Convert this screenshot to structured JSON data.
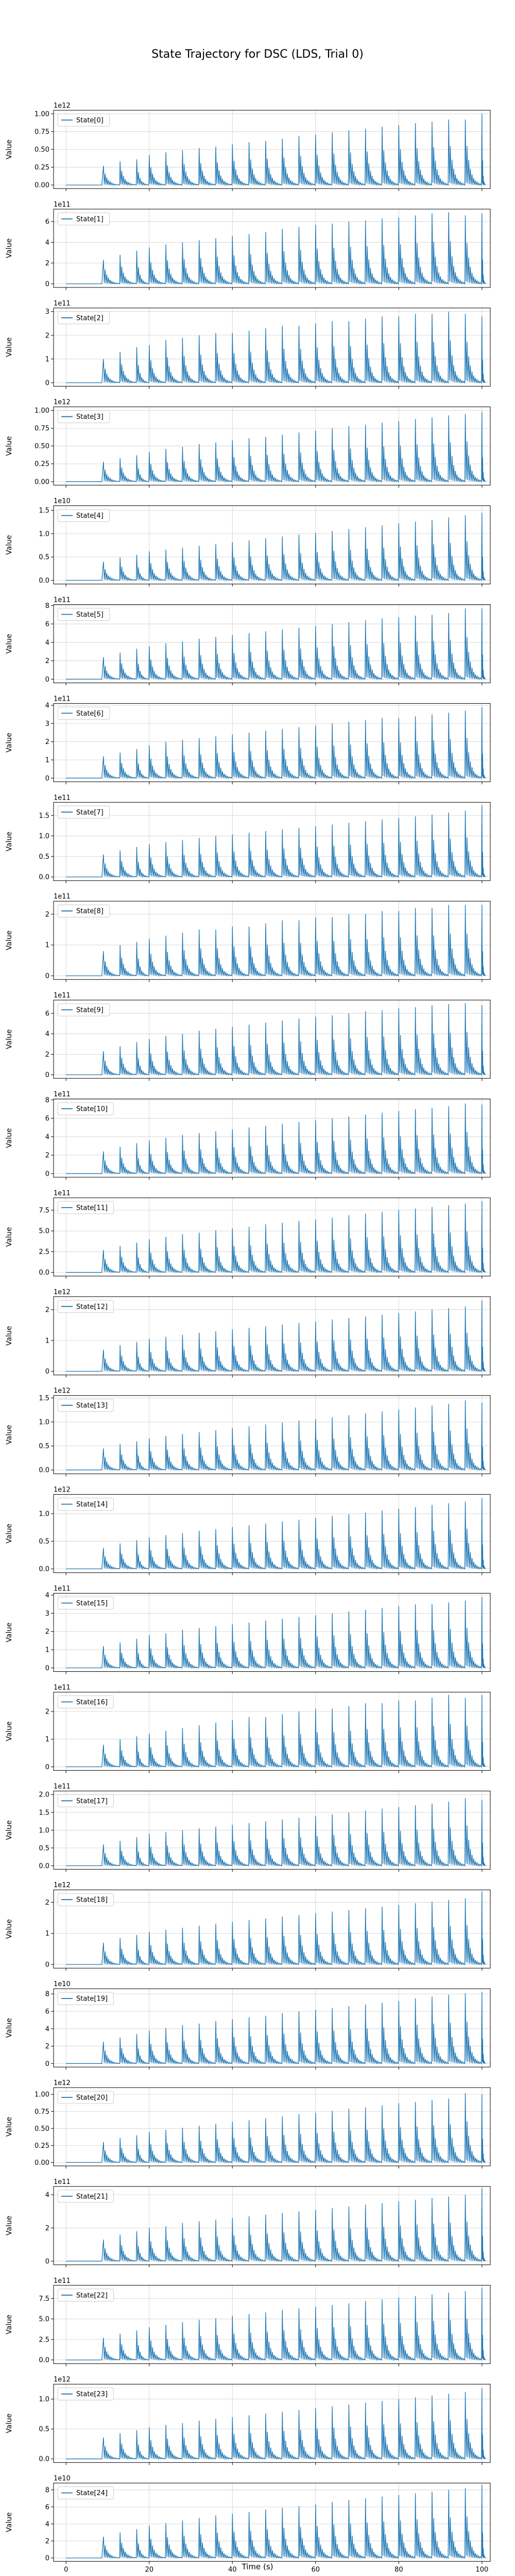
{
  "title": "State Trajectory for DSC (LDS, Trial 0)",
  "chart_data": {
    "type": "line",
    "title": "State Trajectory for DSC (LDS, Trial 0)",
    "xlabel": "Time (s)",
    "ylabel": "Value",
    "xlim": [
      -3,
      102
    ],
    "xticks": [
      0,
      20,
      40,
      60,
      80,
      100
    ],
    "grid": true,
    "legend_placement": "upper left",
    "line_color": "#1f77b4",
    "spike_times": [
      9,
      13,
      17,
      20,
      24,
      28,
      32,
      36,
      40,
      44,
      48,
      52,
      56,
      60,
      64,
      68,
      72,
      76,
      80,
      84,
      88,
      92,
      96,
      100
    ],
    "series": [
      {
        "name": "State[0]",
        "exponent_label": "1e12",
        "yticks": [
          "0.00",
          "0.25",
          "0.50",
          "0.75",
          "1.00"
        ],
        "ylim": [
          -0.05,
          1.05
        ],
        "peaks": [
          0.27,
          0.33,
          0.36,
          0.42,
          0.46,
          0.49,
          0.52,
          0.54,
          0.57,
          0.6,
          0.62,
          0.65,
          0.69,
          0.71,
          0.74,
          0.77,
          0.79,
          0.82,
          0.84,
          0.87,
          0.89,
          0.92,
          0.92,
          1.0
        ]
      },
      {
        "name": "State[1]",
        "exponent_label": "1e11",
        "yticks": [
          "0",
          "2",
          "4",
          "6"
        ],
        "ylim": [
          -0.35,
          7.2
        ],
        "peaks": [
          2.3,
          2.8,
          3.2,
          3.5,
          3.8,
          4.0,
          4.2,
          4.4,
          4.6,
          4.8,
          5.0,
          5.3,
          5.5,
          5.7,
          5.8,
          6.0,
          6.1,
          6.3,
          6.4,
          6.6,
          6.8,
          6.9,
          6.6,
          6.8
        ]
      },
      {
        "name": "State[2]",
        "exponent_label": "1e11",
        "yticks": [
          "0",
          "1",
          "2",
          "3"
        ],
        "ylim": [
          -0.15,
          3.15
        ],
        "peaks": [
          1.0,
          1.3,
          1.5,
          1.6,
          1.8,
          1.9,
          2.0,
          2.1,
          2.1,
          2.2,
          2.3,
          2.4,
          2.4,
          2.5,
          2.6,
          2.6,
          2.7,
          2.8,
          2.8,
          2.9,
          2.9,
          3.0,
          2.9,
          2.8
        ]
      },
      {
        "name": "State[3]",
        "exponent_label": "1e12",
        "yticks": [
          "0.00",
          "0.25",
          "0.50",
          "0.75",
          "1.00"
        ],
        "ylim": [
          -0.05,
          1.05
        ],
        "peaks": [
          0.28,
          0.33,
          0.37,
          0.42,
          0.46,
          0.49,
          0.53,
          0.55,
          0.58,
          0.61,
          0.63,
          0.66,
          0.69,
          0.72,
          0.75,
          0.78,
          0.8,
          0.83,
          0.85,
          0.88,
          0.9,
          0.93,
          0.95,
          0.98
        ]
      },
      {
        "name": "State[4]",
        "exponent_label": "1e10",
        "yticks": [
          "0.0",
          "0.5",
          "1.0",
          "1.5"
        ],
        "ylim": [
          -0.08,
          1.6
        ],
        "peaks": [
          0.4,
          0.49,
          0.55,
          0.62,
          0.66,
          0.7,
          0.74,
          0.78,
          0.82,
          0.86,
          0.9,
          0.94,
          0.98,
          1.02,
          1.06,
          1.1,
          1.14,
          1.18,
          1.22,
          1.26,
          1.3,
          1.35,
          1.4,
          1.45
        ]
      },
      {
        "name": "State[5]",
        "exponent_label": "1e11",
        "yticks": [
          "0",
          "2",
          "4",
          "6",
          "8"
        ],
        "ylim": [
          -0.4,
          8.1
        ],
        "peaks": [
          2.4,
          2.9,
          3.3,
          3.6,
          3.9,
          4.1,
          4.4,
          4.6,
          4.8,
          5.0,
          5.2,
          5.4,
          5.6,
          5.8,
          6.0,
          6.2,
          6.4,
          6.6,
          6.7,
          6.9,
          7.0,
          7.2,
          7.7,
          7.7
        ]
      },
      {
        "name": "State[6]",
        "exponent_label": "1e11",
        "yticks": [
          "0",
          "1",
          "2",
          "3",
          "4"
        ],
        "ylim": [
          -0.2,
          4.1
        ],
        "peaks": [
          1.2,
          1.4,
          1.6,
          1.8,
          2.0,
          2.1,
          2.2,
          2.3,
          2.4,
          2.5,
          2.6,
          2.7,
          2.8,
          2.9,
          3.0,
          3.1,
          3.2,
          3.3,
          3.3,
          3.4,
          3.5,
          3.6,
          3.7,
          3.9
        ]
      },
      {
        "name": "State[7]",
        "exponent_label": "1e11",
        "yticks": [
          "0.0",
          "0.5",
          "1.0",
          "1.5"
        ],
        "ylim": [
          -0.09,
          1.82
        ],
        "peaks": [
          0.55,
          0.65,
          0.73,
          0.8,
          0.85,
          0.9,
          0.95,
          1.0,
          1.04,
          1.08,
          1.12,
          1.16,
          1.2,
          1.24,
          1.28,
          1.32,
          1.36,
          1.4,
          1.44,
          1.48,
          1.52,
          1.57,
          1.62,
          1.75
        ]
      },
      {
        "name": "State[8]",
        "exponent_label": "1e11",
        "yticks": [
          "0",
          "1",
          "2"
        ],
        "ylim": [
          -0.12,
          2.42
        ],
        "peaks": [
          0.8,
          1.0,
          1.1,
          1.2,
          1.3,
          1.4,
          1.5,
          1.5,
          1.6,
          1.6,
          1.7,
          1.8,
          1.8,
          1.9,
          1.9,
          2.0,
          2.0,
          2.1,
          2.1,
          2.2,
          2.2,
          2.3,
          2.3,
          2.3
        ]
      },
      {
        "name": "State[9]",
        "exponent_label": "1e11",
        "yticks": [
          "0",
          "2",
          "4",
          "6"
        ],
        "ylim": [
          -0.35,
          7.3
        ],
        "peaks": [
          2.3,
          2.8,
          3.2,
          3.5,
          3.8,
          4.0,
          4.3,
          4.5,
          4.7,
          4.9,
          5.1,
          5.3,
          5.5,
          5.7,
          5.8,
          6.0,
          6.2,
          6.3,
          6.5,
          6.6,
          6.8,
          6.9,
          7.0,
          6.8
        ]
      },
      {
        "name": "State[10]",
        "exponent_label": "1e11",
        "yticks": [
          "0",
          "2",
          "4",
          "6",
          "8"
        ],
        "ylim": [
          -0.4,
          8.1
        ],
        "peaks": [
          2.4,
          2.9,
          3.3,
          3.6,
          3.9,
          4.2,
          4.4,
          4.6,
          4.8,
          5.0,
          5.2,
          5.4,
          5.6,
          5.8,
          6.0,
          6.2,
          6.4,
          6.6,
          6.8,
          7.0,
          7.1,
          7.3,
          7.6,
          7.5
        ]
      },
      {
        "name": "State[11]",
        "exponent_label": "1e11",
        "yticks": [
          "0.0",
          "2.5",
          "5.0",
          "7.5"
        ],
        "ylim": [
          -0.45,
          9.0
        ],
        "peaks": [
          2.7,
          3.2,
          3.6,
          4.0,
          4.3,
          4.6,
          4.8,
          5.1,
          5.3,
          5.5,
          5.8,
          6.0,
          6.2,
          6.4,
          6.6,
          6.9,
          7.1,
          7.3,
          7.5,
          7.7,
          7.9,
          8.1,
          8.3,
          8.6
        ]
      },
      {
        "name": "State[12]",
        "exponent_label": "1e12",
        "yticks": [
          "0",
          "1",
          "2"
        ],
        "ylim": [
          -0.12,
          2.42
        ],
        "peaks": [
          0.7,
          0.85,
          0.95,
          1.05,
          1.12,
          1.18,
          1.25,
          1.3,
          1.36,
          1.41,
          1.46,
          1.52,
          1.57,
          1.62,
          1.68,
          1.73,
          1.78,
          1.84,
          1.89,
          1.94,
          2.0,
          2.05,
          2.1,
          2.3
        ]
      },
      {
        "name": "State[13]",
        "exponent_label": "1e12",
        "yticks": [
          "0.0",
          "0.5",
          "1.0",
          "1.5"
        ],
        "ylim": [
          -0.08,
          1.55
        ],
        "peaks": [
          0.45,
          0.54,
          0.6,
          0.66,
          0.71,
          0.75,
          0.79,
          0.83,
          0.87,
          0.91,
          0.95,
          0.99,
          1.03,
          1.06,
          1.1,
          1.14,
          1.18,
          1.22,
          1.26,
          1.3,
          1.34,
          1.38,
          1.45,
          1.4
        ]
      },
      {
        "name": "State[14]",
        "exponent_label": "1e12",
        "yticks": [
          "0.0",
          "0.5",
          "1.0"
        ],
        "ylim": [
          -0.07,
          1.35
        ],
        "peaks": [
          0.38,
          0.46,
          0.52,
          0.57,
          0.61,
          0.65,
          0.69,
          0.72,
          0.76,
          0.79,
          0.82,
          0.86,
          0.89,
          0.92,
          0.96,
          0.99,
          1.02,
          1.06,
          1.09,
          1.12,
          1.16,
          1.19,
          1.22,
          1.28
        ]
      },
      {
        "name": "State[15]",
        "exponent_label": "1e11",
        "yticks": [
          "0",
          "1",
          "2",
          "3",
          "4"
        ],
        "ylim": [
          -0.2,
          4.1
        ],
        "peaks": [
          1.2,
          1.4,
          1.6,
          1.8,
          1.9,
          2.1,
          2.2,
          2.3,
          2.4,
          2.5,
          2.6,
          2.7,
          2.8,
          2.9,
          3.0,
          3.1,
          3.2,
          3.3,
          3.4,
          3.5,
          3.5,
          3.6,
          3.7,
          3.9
        ]
      },
      {
        "name": "State[16]",
        "exponent_label": "1e11",
        "yticks": [
          "0",
          "1",
          "2"
        ],
        "ylim": [
          -0.13,
          2.7
        ],
        "peaks": [
          0.8,
          1.0,
          1.1,
          1.2,
          1.3,
          1.4,
          1.5,
          1.6,
          1.7,
          1.8,
          1.8,
          1.9,
          2.0,
          2.1,
          2.1,
          2.2,
          2.3,
          2.3,
          2.4,
          2.4,
          2.5,
          2.6,
          2.5,
          2.6
        ]
      },
      {
        "name": "State[17]",
        "exponent_label": "1e11",
        "yticks": [
          "0.0",
          "0.5",
          "1.0",
          "1.5",
          "2.0"
        ],
        "ylim": [
          -0.1,
          2.1
        ],
        "peaks": [
          0.6,
          0.7,
          0.8,
          0.9,
          0.95,
          1.0,
          1.05,
          1.1,
          1.15,
          1.2,
          1.25,
          1.3,
          1.35,
          1.4,
          1.45,
          1.5,
          1.55,
          1.6,
          1.65,
          1.7,
          1.75,
          1.8,
          1.9,
          1.85
        ]
      },
      {
        "name": "State[18]",
        "exponent_label": "1e12",
        "yticks": [
          "0",
          "1",
          "2"
        ],
        "ylim": [
          -0.12,
          2.4
        ],
        "peaks": [
          0.7,
          0.85,
          0.95,
          1.05,
          1.12,
          1.18,
          1.25,
          1.31,
          1.37,
          1.43,
          1.48,
          1.54,
          1.59,
          1.65,
          1.7,
          1.75,
          1.81,
          1.86,
          1.92,
          1.97,
          2.02,
          2.08,
          2.13,
          2.35
        ]
      },
      {
        "name": "State[19]",
        "exponent_label": "1e10",
        "yticks": [
          "0",
          "2",
          "4",
          "6",
          "8"
        ],
        "ylim": [
          -0.4,
          8.6
        ],
        "peaks": [
          2.5,
          3.0,
          3.4,
          3.8,
          4.1,
          4.4,
          4.6,
          4.9,
          5.1,
          5.3,
          5.5,
          5.8,
          6.0,
          6.2,
          6.4,
          6.6,
          6.8,
          7.0,
          7.2,
          7.5,
          7.7,
          7.9,
          8.1,
          8.2
        ]
      },
      {
        "name": "State[20]",
        "exponent_label": "1e12",
        "yticks": [
          "0.00",
          "0.25",
          "0.50",
          "0.75",
          "1.00"
        ],
        "ylim": [
          -0.05,
          1.1
        ],
        "peaks": [
          0.3,
          0.36,
          0.4,
          0.45,
          0.48,
          0.51,
          0.54,
          0.57,
          0.6,
          0.62,
          0.65,
          0.68,
          0.71,
          0.73,
          0.76,
          0.79,
          0.81,
          0.84,
          0.87,
          0.89,
          0.92,
          0.94,
          1.02,
          1.0
        ]
      },
      {
        "name": "State[21]",
        "exponent_label": "1e11",
        "yticks": [
          "0",
          "2",
          "4"
        ],
        "ylim": [
          -0.22,
          4.5
        ],
        "peaks": [
          1.3,
          1.6,
          1.8,
          2.0,
          2.1,
          2.3,
          2.4,
          2.5,
          2.6,
          2.7,
          2.8,
          2.9,
          3.0,
          3.1,
          3.2,
          3.3,
          3.4,
          3.5,
          3.6,
          3.7,
          3.8,
          3.9,
          4.0,
          4.4
        ]
      },
      {
        "name": "State[22]",
        "exponent_label": "1e11",
        "yticks": [
          "0.0",
          "2.5",
          "5.0",
          "7.5"
        ],
        "ylim": [
          -0.45,
          9.1
        ],
        "peaks": [
          2.7,
          3.2,
          3.6,
          4.0,
          4.3,
          4.6,
          4.9,
          5.1,
          5.4,
          5.6,
          5.8,
          6.1,
          6.3,
          6.5,
          6.7,
          6.9,
          7.2,
          7.4,
          7.6,
          7.8,
          8.0,
          8.2,
          8.4,
          8.8
        ]
      },
      {
        "name": "State[23]",
        "exponent_label": "1e12",
        "yticks": [
          "0.0",
          "0.5",
          "1.0"
        ],
        "ylim": [
          -0.06,
          1.25
        ],
        "peaks": [
          0.36,
          0.43,
          0.48,
          0.53,
          0.57,
          0.6,
          0.64,
          0.67,
          0.7,
          0.73,
          0.76,
          0.79,
          0.82,
          0.85,
          0.88,
          0.91,
          0.94,
          0.97,
          1.0,
          1.03,
          1.06,
          1.09,
          1.12,
          1.18
        ]
      },
      {
        "name": "State[24]",
        "exponent_label": "1e10",
        "yticks": [
          "0",
          "2",
          "4",
          "6",
          "8"
        ],
        "ylim": [
          -0.4,
          8.8
        ],
        "peaks": [
          2.5,
          3.0,
          3.4,
          3.8,
          4.1,
          4.4,
          4.7,
          5.0,
          5.2,
          5.4,
          5.7,
          5.9,
          6.1,
          6.3,
          6.6,
          6.8,
          7.0,
          7.2,
          7.4,
          7.6,
          7.8,
          8.0,
          8.2,
          8.6
        ]
      }
    ]
  }
}
